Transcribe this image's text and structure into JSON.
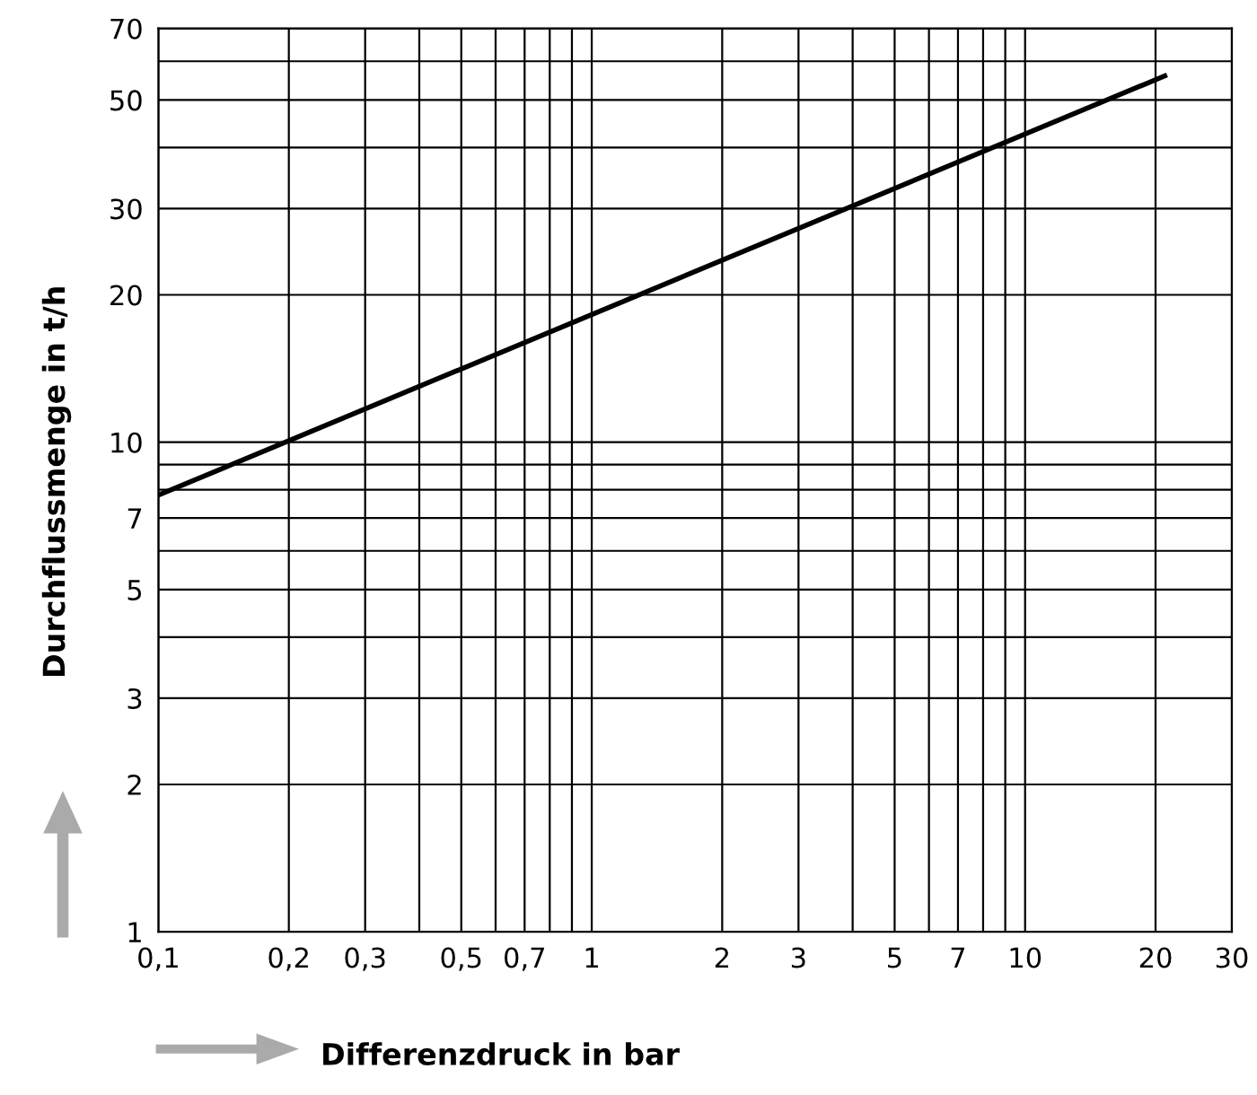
{
  "chart_data": {
    "type": "line",
    "xlabel": "Differenzdruck in bar",
    "ylabel": "Durchflussmenge in t/h",
    "log": "xy",
    "grid": true,
    "marker": "none",
    "line_style": "solid",
    "series": [
      {
        "color": "#000000",
        "x": [
          0.1,
          21
        ],
        "values": [
          7.8,
          56
        ]
      }
    ],
    "xlim": [
      0.1,
      30
    ],
    "ylim": [
      1,
      70
    ],
    "xticks": [
      {
        "value": 0.1,
        "label": "0,1"
      },
      {
        "value": 0.2,
        "label": "0,2"
      },
      {
        "value": 0.3,
        "label": "0,3"
      },
      {
        "value": 0.4,
        "label": null
      },
      {
        "value": 0.5,
        "label": "0,5"
      },
      {
        "value": 0.6,
        "label": null
      },
      {
        "value": 0.7,
        "label": "0,7"
      },
      {
        "value": 0.8,
        "label": null
      },
      {
        "value": 0.9,
        "label": null
      },
      1,
      2,
      3,
      {
        "value": 4,
        "label": null
      },
      5,
      {
        "value": 6,
        "label": null
      },
      7,
      {
        "value": 8,
        "label": null
      },
      {
        "value": 9,
        "label": null
      },
      10,
      20,
      30
    ],
    "yticks": [
      1,
      2,
      3,
      {
        "value": 4,
        "label": null
      },
      5,
      {
        "value": 6,
        "label": null
      },
      7,
      {
        "value": 8,
        "label": null
      },
      {
        "value": 9,
        "label": null
      },
      10,
      20,
      30,
      {
        "value": 40,
        "label": null
      },
      50,
      {
        "value": 60,
        "label": null
      },
      70
    ]
  }
}
